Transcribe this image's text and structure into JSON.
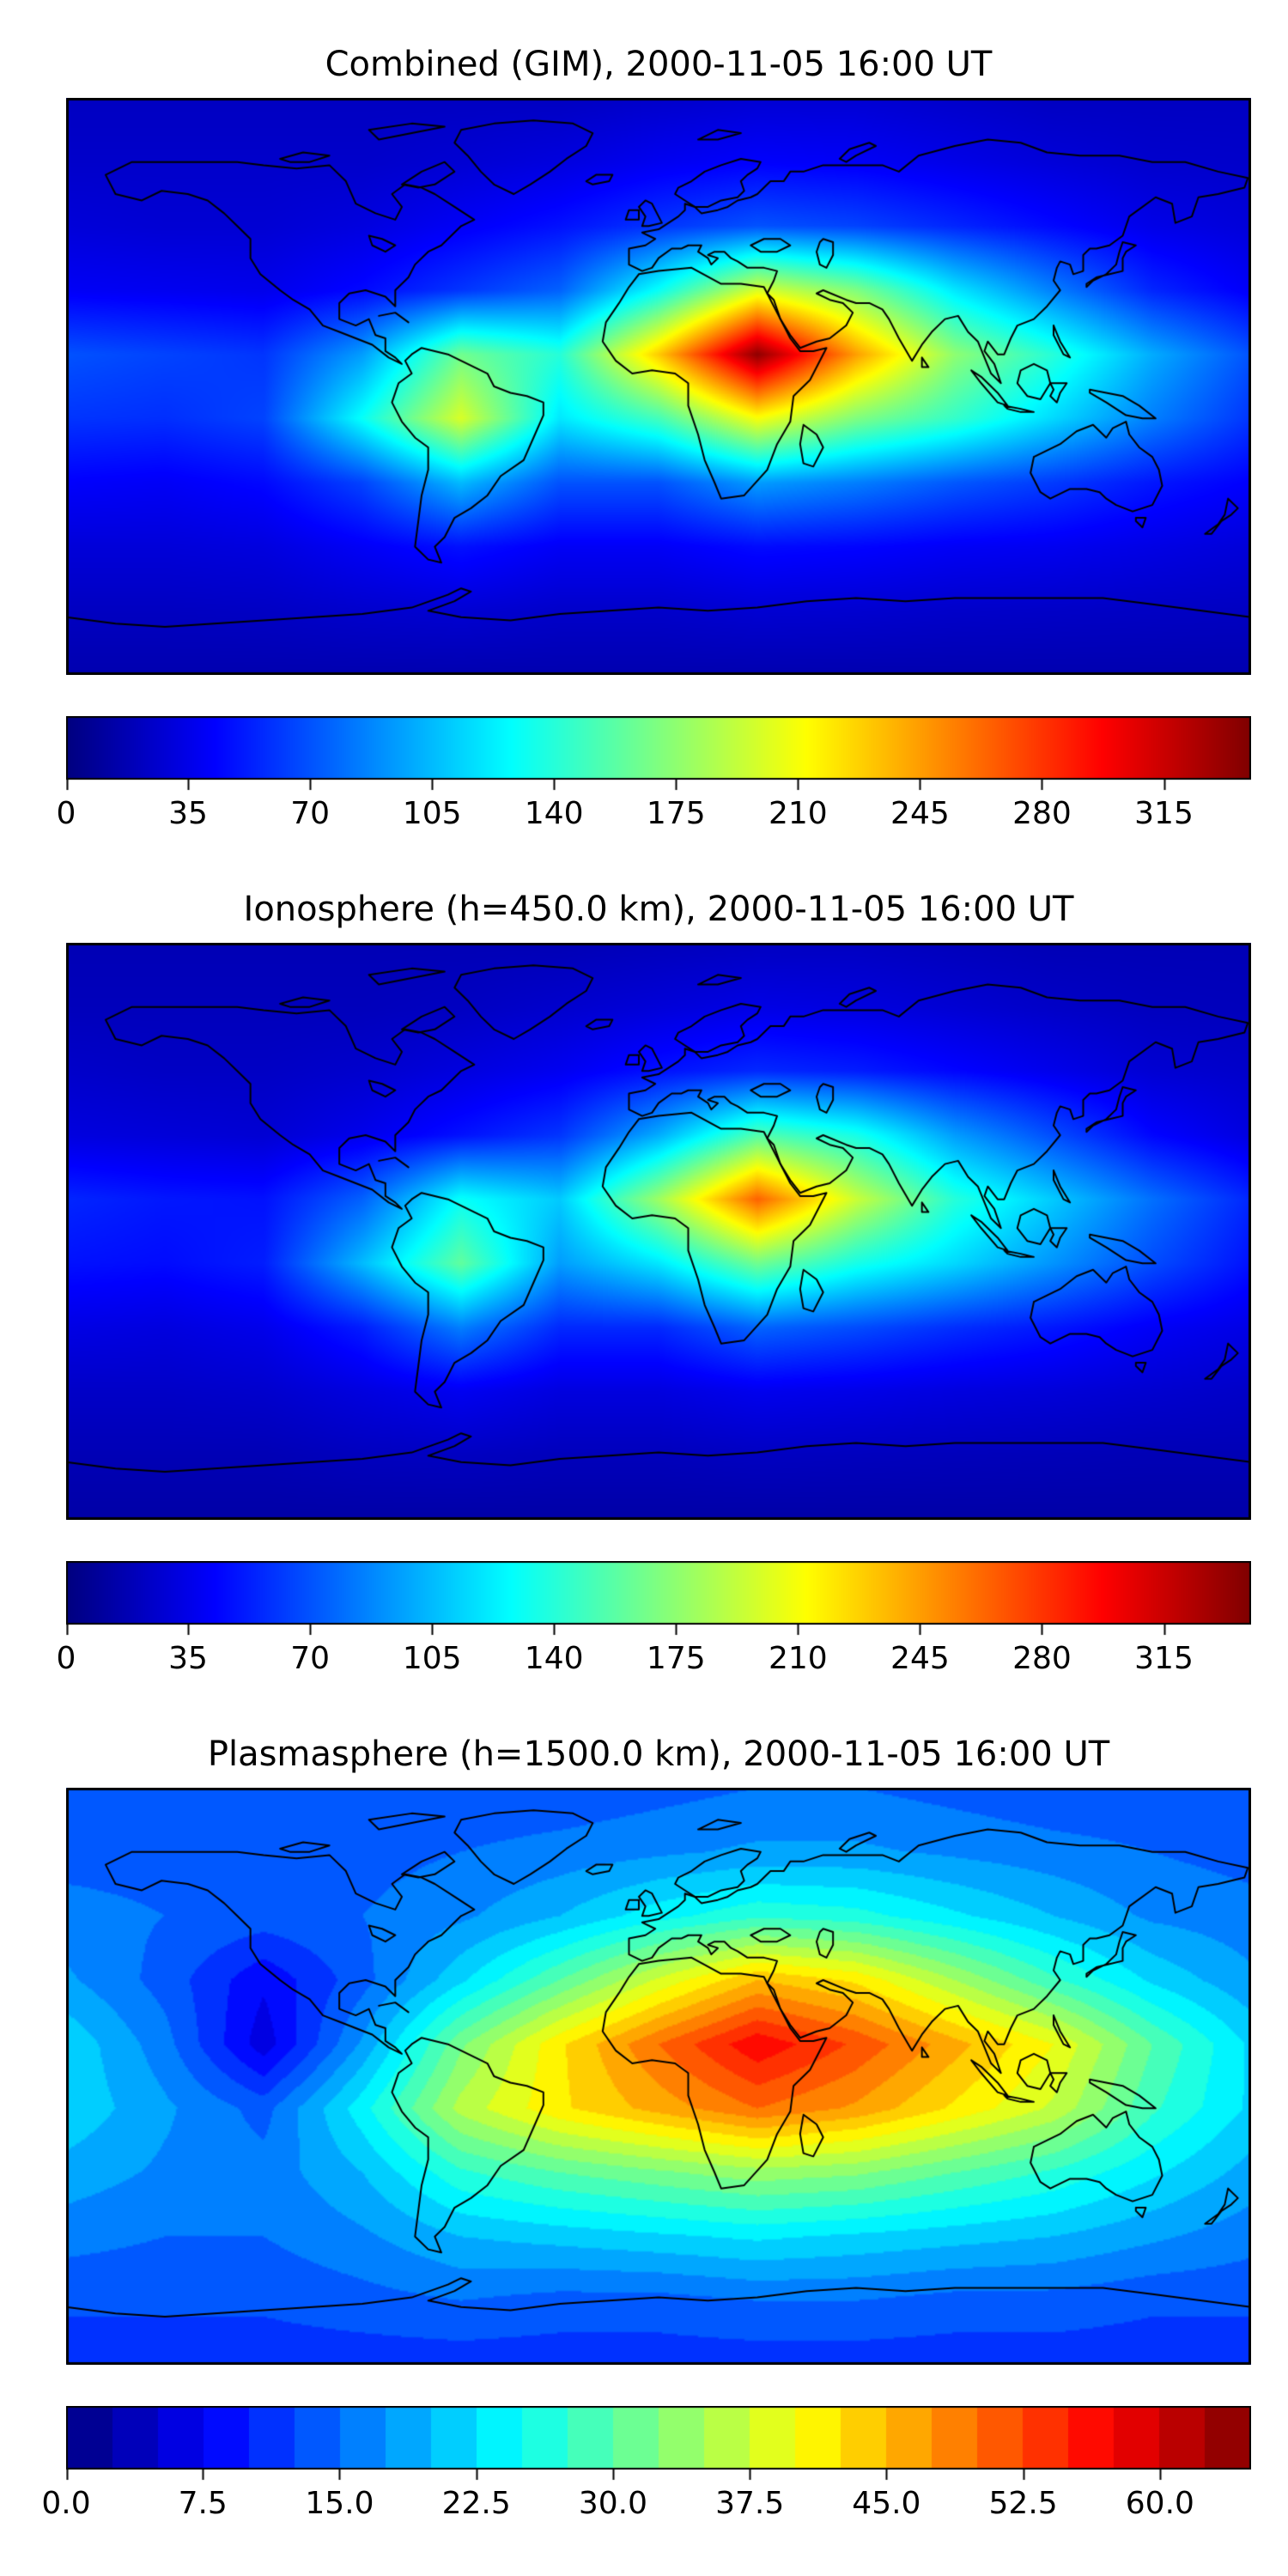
{
  "figure": {
    "background": "#ffffff",
    "text_color": "#000000",
    "coastline_color": "#000000"
  },
  "chart_data": [
    {
      "type": "heatmap",
      "style": "smooth",
      "title": "Combined (GIM), 2000-11-05 16:00 UT",
      "colormap": "jet",
      "lon_range": [
        -180,
        180
      ],
      "lat_range": [
        -90,
        90
      ],
      "vmin": 0,
      "vmax": 340,
      "colorbar_ticks": [
        0,
        35,
        70,
        105,
        140,
        175,
        210,
        245,
        280,
        315
      ],
      "colorbar_tick_labels": [
        "0",
        "35",
        "70",
        "105",
        "140",
        "175",
        "210",
        "245",
        "280",
        "315"
      ],
      "lons": [
        -180,
        -150,
        -120,
        -90,
        -60,
        -30,
        0,
        30,
        60,
        90,
        120,
        150,
        180
      ],
      "lats": [
        90,
        70,
        50,
        30,
        10,
        -10,
        -30,
        -50,
        -70,
        -90
      ],
      "values": [
        [
          22,
          22,
          22,
          22,
          22,
          22,
          25,
          28,
          28,
          25,
          22,
          22,
          22
        ],
        [
          25,
          25,
          25,
          25,
          28,
          32,
          38,
          42,
          40,
          35,
          30,
          26,
          25
        ],
        [
          30,
          28,
          28,
          32,
          40,
          48,
          60,
          70,
          65,
          55,
          45,
          35,
          30
        ],
        [
          40,
          38,
          36,
          45,
          60,
          75,
          130,
          200,
          170,
          120,
          85,
          55,
          40
        ],
        [
          70,
          65,
          60,
          95,
          165,
          140,
          230,
          335,
          245,
          175,
          140,
          100,
          70
        ],
        [
          60,
          58,
          65,
          130,
          200,
          120,
          150,
          210,
          170,
          145,
          115,
          85,
          60
        ],
        [
          42,
          40,
          45,
          65,
          105,
          70,
          70,
          95,
          85,
          72,
          62,
          50,
          42
        ],
        [
          30,
          30,
          32,
          40,
          48,
          40,
          40,
          46,
          44,
          40,
          38,
          34,
          30
        ],
        [
          22,
          22,
          23,
          26,
          28,
          25,
          25,
          28,
          27,
          25,
          24,
          23,
          22
        ],
        [
          16,
          16,
          16,
          16,
          16,
          16,
          16,
          16,
          16,
          16,
          16,
          16,
          16
        ]
      ]
    },
    {
      "type": "heatmap",
      "style": "smooth",
      "title": "Ionosphere  (h=450.0 km), 2000-11-05 16:00 UT",
      "colormap": "jet",
      "lon_range": [
        -180,
        180
      ],
      "lat_range": [
        -90,
        90
      ],
      "vmin": 0,
      "vmax": 340,
      "colorbar_ticks": [
        0,
        35,
        70,
        105,
        140,
        175,
        210,
        245,
        280,
        315
      ],
      "colorbar_tick_labels": [
        "0",
        "35",
        "70",
        "105",
        "140",
        "175",
        "210",
        "245",
        "280",
        "315"
      ],
      "lons": [
        -180,
        -150,
        -120,
        -90,
        -60,
        -30,
        0,
        30,
        60,
        90,
        120,
        150,
        180
      ],
      "lats": [
        90,
        70,
        50,
        30,
        10,
        -10,
        -30,
        -50,
        -70,
        -90
      ],
      "values": [
        [
          18,
          18,
          18,
          18,
          18,
          18,
          20,
          22,
          22,
          20,
          18,
          18,
          18
        ],
        [
          20,
          20,
          20,
          20,
          22,
          26,
          30,
          34,
          32,
          28,
          24,
          21,
          20
        ],
        [
          25,
          23,
          23,
          26,
          32,
          38,
          48,
          56,
          52,
          44,
          36,
          28,
          25
        ],
        [
          32,
          30,
          28,
          36,
          48,
          60,
          100,
          155,
          135,
          95,
          68,
          44,
          32
        ],
        [
          55,
          50,
          48,
          75,
          130,
          110,
          180,
          265,
          195,
          140,
          110,
          80,
          55
        ],
        [
          48,
          46,
          52,
          105,
          160,
          95,
          120,
          165,
          135,
          115,
          92,
          68,
          48
        ],
        [
          34,
          32,
          36,
          52,
          85,
          56,
          56,
          76,
          68,
          58,
          50,
          40,
          34
        ],
        [
          24,
          24,
          26,
          32,
          38,
          32,
          32,
          37,
          35,
          32,
          30,
          27,
          24
        ],
        [
          18,
          18,
          18,
          21,
          22,
          20,
          20,
          22,
          21,
          20,
          19,
          18,
          18
        ],
        [
          13,
          13,
          13,
          13,
          13,
          13,
          13,
          13,
          13,
          13,
          13,
          13,
          13
        ]
      ]
    },
    {
      "type": "heatmap",
      "style": "contourf",
      "levels": 26,
      "title": "Plasmasphere (h=1500.0 km), 2000-11-05 16:00 UT",
      "colormap": "jet",
      "lon_range": [
        -180,
        180
      ],
      "lat_range": [
        -90,
        90
      ],
      "vmin": 0,
      "vmax": 65,
      "colorbar_ticks": [
        0,
        7.5,
        15,
        22.5,
        30,
        37.5,
        45,
        52.5,
        60
      ],
      "colorbar_tick_labels": [
        "0.0",
        "7.5",
        "15.0",
        "22.5",
        "30.0",
        "37.5",
        "45.0",
        "52.5",
        "60.0"
      ],
      "lons": [
        -180,
        -150,
        -120,
        -90,
        -60,
        -30,
        0,
        30,
        60,
        90,
        120,
        150,
        180
      ],
      "lats": [
        90,
        70,
        50,
        30,
        10,
        -10,
        -30,
        -50,
        -70,
        -90
      ],
      "values": [
        [
          13,
          13,
          13,
          13,
          13,
          13,
          14,
          15,
          15,
          14,
          13,
          13,
          13
        ],
        [
          14,
          14,
          14,
          14,
          15,
          16,
          17,
          18,
          18,
          17,
          16,
          15,
          14
        ],
        [
          16,
          15,
          14,
          15,
          17,
          20,
          24,
          27,
          26,
          23,
          20,
          17,
          16
        ],
        [
          18,
          14,
          8,
          14,
          22,
          30,
          38,
          45,
          42,
          35,
          28,
          22,
          18
        ],
        [
          22,
          16,
          6,
          18,
          32,
          42,
          50,
          57,
          52,
          46,
          40,
          30,
          22
        ],
        [
          22,
          18,
          14,
          24,
          36,
          42,
          46,
          50,
          47,
          42,
          37,
          28,
          22
        ],
        [
          19,
          17,
          16,
          20,
          27,
          30,
          32,
          34,
          33,
          30,
          27,
          23,
          19
        ],
        [
          16,
          15,
          15,
          17,
          20,
          21,
          22,
          23,
          22,
          21,
          20,
          18,
          16
        ],
        [
          13,
          13,
          13,
          14,
          15,
          14,
          14,
          15,
          15,
          14,
          14,
          13,
          13
        ],
        [
          11,
          11,
          11,
          11,
          11,
          11,
          11,
          11,
          11,
          11,
          11,
          11,
          11
        ]
      ]
    }
  ]
}
